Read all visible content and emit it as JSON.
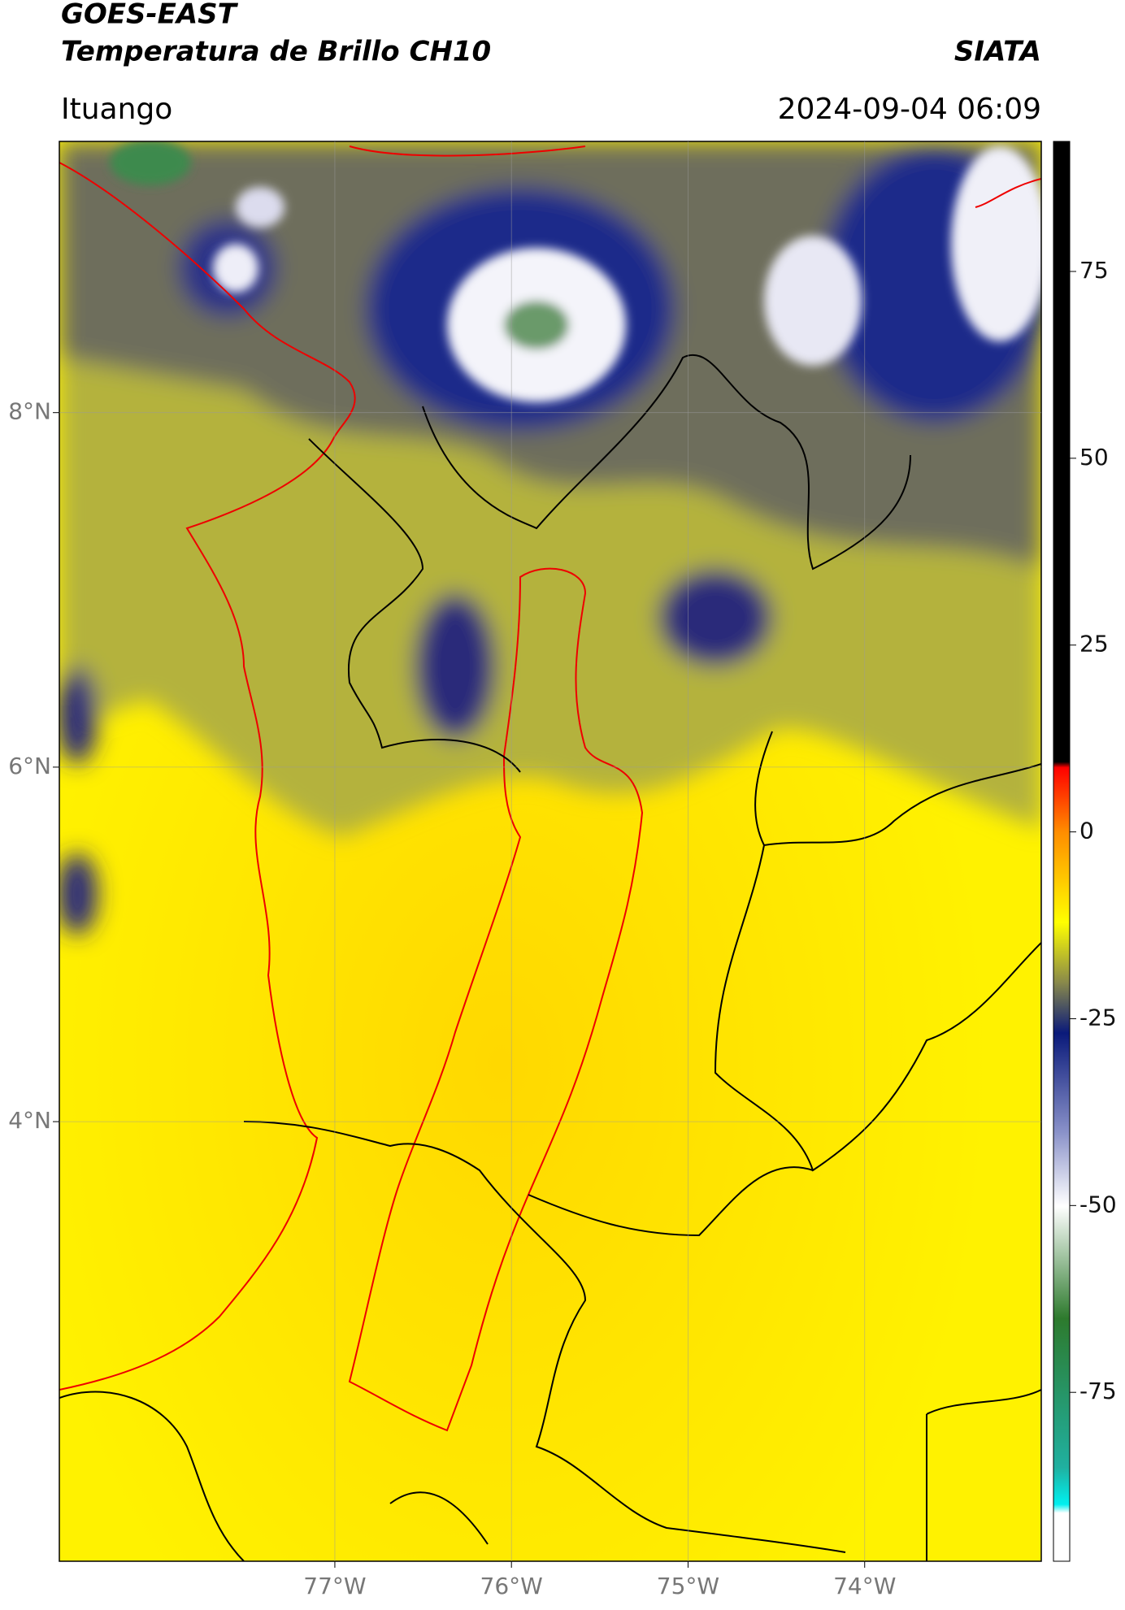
{
  "header": {
    "title": "GOES-EAST",
    "subtitle": "Temperatura de Brillo CH10",
    "source": "SIATA",
    "location": "Ituango",
    "datetime": "2024-09-04 06:09"
  },
  "map": {
    "xlim": [
      -78.56,
      -73.0
    ],
    "ylim": [
      1.52,
      9.53
    ],
    "xticks": [
      {
        "value": -77,
        "label": "77°W"
      },
      {
        "value": -76,
        "label": "76°W"
      },
      {
        "value": -75,
        "label": "75°W"
      },
      {
        "value": -74,
        "label": "74°W"
      }
    ],
    "yticks": [
      {
        "value": 8,
        "label": "8°N"
      },
      {
        "value": 6,
        "label": "6°N"
      },
      {
        "value": 4,
        "label": "4°N"
      }
    ]
  },
  "colorbar": {
    "lim": [
      -97.6,
      92.4
    ],
    "ticks": [
      75,
      50,
      25,
      0,
      -25,
      -50,
      -75
    ]
  }
}
